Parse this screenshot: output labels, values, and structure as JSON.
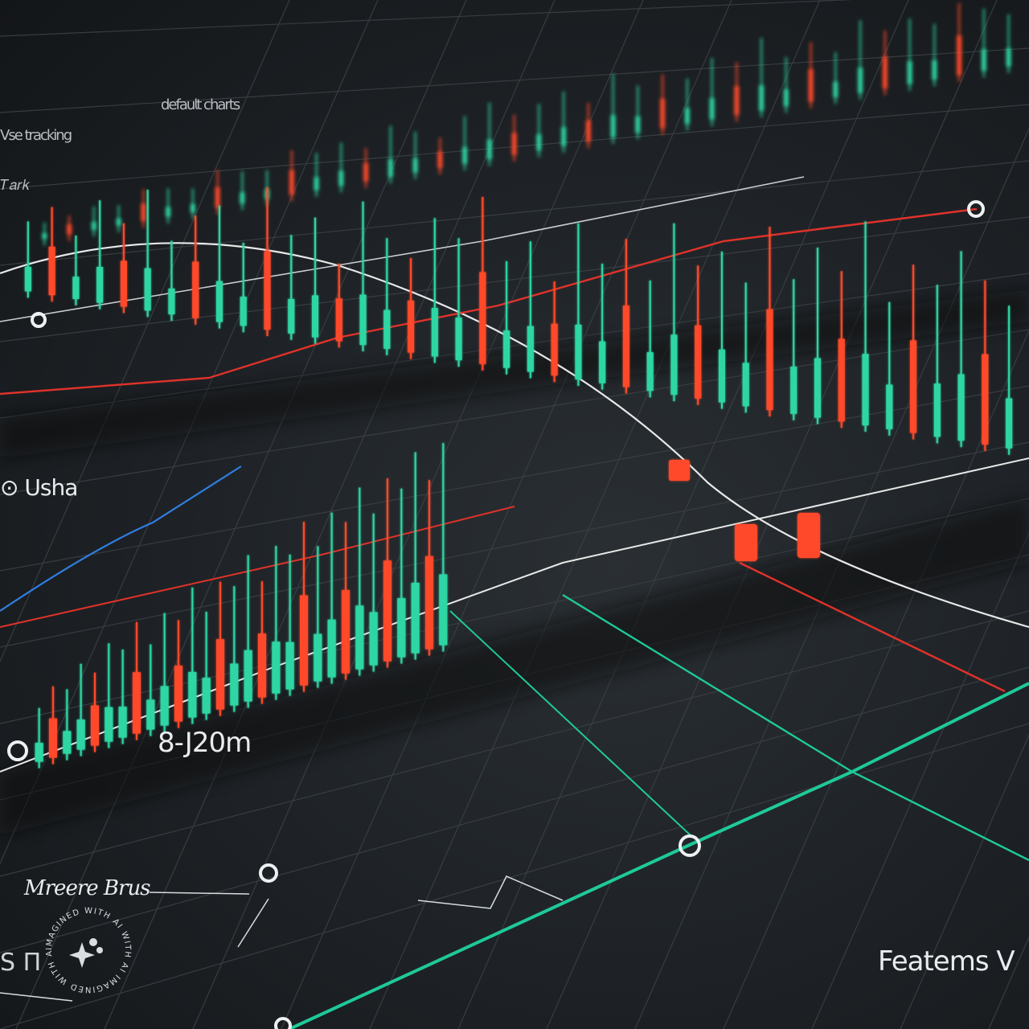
{
  "labels": {
    "usha": "⊙ Usha",
    "date": "8-J20m",
    "brand": "Mreere Brus",
    "footer": "Featems V",
    "top_left": "Vse 𝗍𝗋𝖺𝖼𝗄𝗂𝗇𝗀",
    "top_mid": "𝖽𝖾𝖿𝖺𝗎𝗅𝗍 𝖼𝗁𝖺𝗋𝗍𝗌",
    "side": "𝑇𝑎𝑟𝑘",
    "corner": "S Π"
  },
  "watermark": {
    "text": "IMAGINED WITH AI"
  },
  "colors": {
    "up": "#2fd6a3",
    "down": "#ff4a2a",
    "line_white": "#e8e8e8",
    "line_red": "#e0322a",
    "line_teal": "#1fc99a",
    "line_blue": "#2f7ee0",
    "background": "#1c1f22"
  },
  "chart_data": {
    "type": "candlestick",
    "title": "",
    "xlabel": "",
    "ylabel": "",
    "grid": true,
    "legend": "none",
    "series": [
      {
        "style": "mixed",
        "values": [
          0.3,
          0.34,
          0.42,
          0.36,
          0.55,
          0.48,
          0.4,
          0.62,
          0.52,
          0.46,
          0.7,
          0.58,
          0.66,
          0.5,
          0.76,
          0.6,
          0.44,
          0.68,
          0.8,
          0.56,
          0.64,
          0.74,
          0.52,
          0.84,
          0.62,
          0.7,
          0.58,
          0.78,
          0.66,
          0.9,
          0.6,
          0.72,
          0.54,
          0.86,
          0.68,
          0.76,
          0.64,
          0.82,
          0.7,
          0.58
        ]
      },
      {
        "style": "mixed",
        "values": [
          0.5,
          0.62,
          0.44,
          0.7,
          0.56,
          0.8,
          0.48,
          0.66,
          0.74,
          0.52,
          0.88,
          0.6,
          0.72,
          0.46,
          0.84,
          0.64,
          0.54,
          0.78,
          0.68,
          0.92,
          0.58,
          0.7,
          0.5,
          0.82,
          0.62,
          0.76,
          0.56,
          0.86,
          0.66,
          0.74,
          0.6,
          0.88,
          0.64,
          0.8,
          0.7,
          0.94,
          0.58,
          0.76,
          0.68,
          0.84,
          0.72,
          0.62
        ]
      },
      {
        "style": "mixed",
        "values": [
          0.4,
          0.52,
          0.46,
          0.6,
          0.5,
          0.66,
          0.58,
          0.72,
          0.54,
          0.7,
          0.62,
          0.78,
          0.6,
          0.74,
          0.68,
          0.82,
          0.64,
          0.8,
          0.72,
          0.86,
          0.7,
          0.84,
          0.76,
          0.9,
          0.74,
          0.88,
          0.8,
          0.94,
          0.78,
          0.92
        ]
      }
    ]
  }
}
